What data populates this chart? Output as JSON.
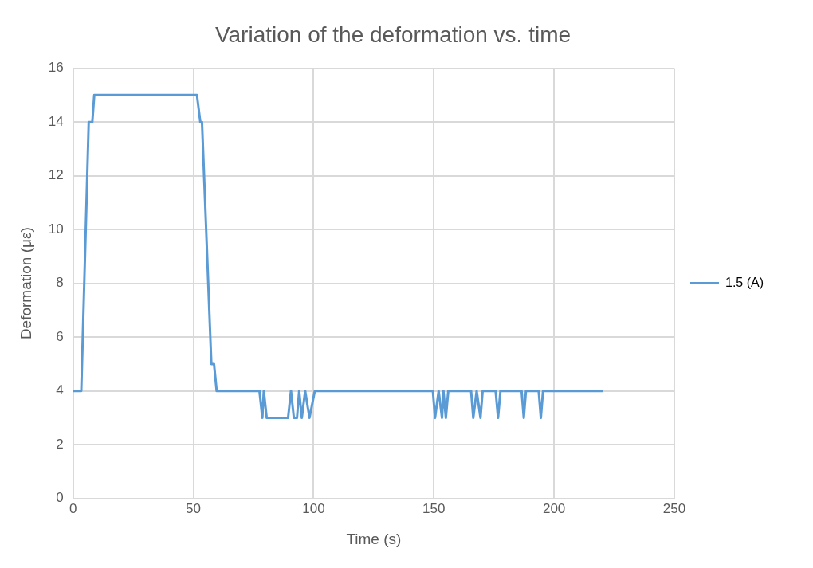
{
  "chart_data": {
    "type": "line",
    "title": "Variation of the deformation vs. time",
    "xlabel": "Time (s)",
    "ylabel": "Deformation (με)",
    "series": [
      {
        "name": "1.5 (A)",
        "color": "#5b9bd5",
        "x": [
          0,
          3.4,
          6.5,
          8,
          8.8,
          51.5,
          52.9,
          53.6,
          57.5,
          58.6,
          59.7,
          77.5,
          78.7,
          79.3,
          80.5,
          89.4,
          90.6,
          91.8,
          93.1,
          94,
          95.1,
          96.5,
          98.3,
          100.5,
          149.6,
          150.5,
          152,
          153.4,
          154,
          155,
          156,
          165.5,
          166.4,
          167.8,
          169.4,
          170.3,
          175.7,
          176.7,
          177.7,
          186.5,
          187.4,
          188.3,
          193.6,
          194.5,
          195.4,
          220
        ],
        "values": [
          4,
          4,
          14,
          14,
          15,
          15,
          14,
          14,
          5,
          5,
          4,
          4,
          3,
          4,
          3,
          3,
          4,
          3,
          3,
          4,
          3,
          4,
          3,
          4,
          4,
          3,
          4,
          3,
          4,
          3,
          4,
          4,
          3,
          4,
          3,
          4,
          4,
          3,
          4,
          4,
          3,
          4,
          4,
          3,
          4,
          4
        ]
      }
    ],
    "xlim": [
      0,
      250
    ],
    "xticks": [
      0,
      50,
      100,
      150,
      200,
      250
    ],
    "ylim": [
      0,
      16
    ],
    "yticks": [
      0,
      2,
      4,
      6,
      8,
      10,
      12,
      14,
      16
    ],
    "grid": true,
    "legend": "right",
    "marker": "none",
    "line_style": "solid"
  }
}
